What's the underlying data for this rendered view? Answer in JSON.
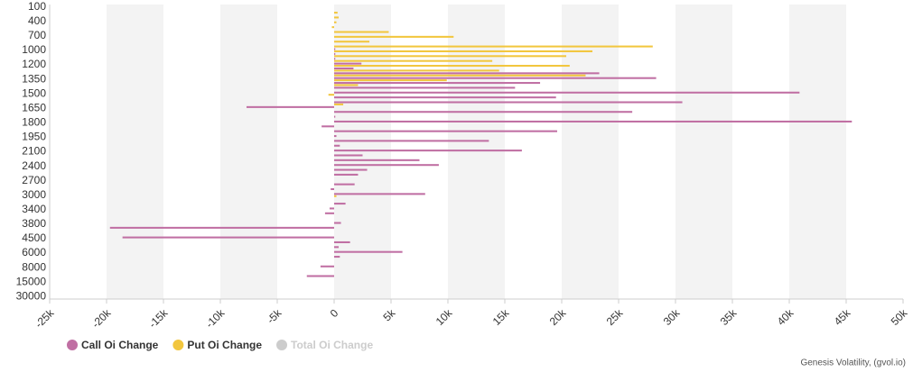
{
  "chart_data": {
    "type": "bar",
    "orientation": "horizontal",
    "categories": [
      "100",
      null,
      null,
      "400",
      null,
      null,
      "700",
      null,
      null,
      "1000",
      null,
      null,
      "1200",
      null,
      null,
      "1350",
      null,
      null,
      "1500",
      null,
      null,
      "1650",
      null,
      null,
      "1800",
      null,
      null,
      "1950",
      null,
      null,
      "2100",
      null,
      null,
      "2400",
      null,
      null,
      "2700",
      null,
      null,
      "3000",
      null,
      null,
      "3400",
      null,
      null,
      "3800",
      null,
      null,
      "4500",
      null,
      null,
      "6000",
      null,
      null,
      "8000",
      null,
      null,
      "15000",
      null,
      null,
      "30000"
    ],
    "series": [
      {
        "name": "Call Oi Change",
        "color": "#c06fa3",
        "values": [
          0,
          0,
          0,
          0,
          0,
          0,
          0,
          0,
          0,
          100,
          100,
          100,
          2400,
          1700,
          23300,
          28300,
          18100,
          15900,
          40900,
          19500,
          30600,
          -7700,
          26200,
          100,
          45500,
          -1100,
          19600,
          200,
          13600,
          500,
          16500,
          2500,
          7500,
          9200,
          2900,
          2100,
          0,
          1800,
          -300,
          8000,
          0,
          1000,
          -400,
          -800,
          0,
          600,
          -19700,
          0,
          -18600,
          1400,
          400,
          6000,
          500,
          0,
          -1200,
          0,
          -2400,
          0,
          0,
          0,
          0
        ]
      },
      {
        "name": "Put Oi Change",
        "color": "#f2c63e",
        "values": [
          0,
          300,
          400,
          200,
          -200,
          4800,
          10500,
          3100,
          28000,
          22700,
          20400,
          13900,
          20700,
          14500,
          22100,
          9900,
          2100,
          0,
          -500,
          0,
          800,
          0,
          0,
          0,
          0,
          0,
          0,
          0,
          0,
          0,
          0,
          0,
          0,
          0,
          0,
          0,
          0,
          0,
          0,
          200,
          0,
          0,
          0,
          0,
          0,
          0,
          0,
          0,
          0,
          0,
          0,
          0,
          0,
          0,
          0,
          0,
          0,
          0,
          0,
          0,
          0
        ]
      },
      {
        "name": "Total Oi Change",
        "color": "#cccccc",
        "visible": false
      }
    ],
    "xlim": [
      -25000,
      50000
    ],
    "xticks": [
      {
        "value": -25000,
        "label": "-25k"
      },
      {
        "value": -20000,
        "label": "-20k"
      },
      {
        "value": -15000,
        "label": "-15k"
      },
      {
        "value": -10000,
        "label": "-10k"
      },
      {
        "value": -5000,
        "label": "-5k"
      },
      0,
      {
        "value": 5000,
        "label": "5k"
      },
      {
        "value": 10000,
        "label": "10k"
      },
      {
        "value": 15000,
        "label": "15k"
      },
      {
        "value": 20000,
        "label": "20k"
      },
      {
        "value": 25000,
        "label": "25k"
      },
      {
        "value": 30000,
        "label": "30k"
      },
      {
        "value": 35000,
        "label": "35k"
      },
      {
        "value": 40000,
        "label": "40k"
      },
      {
        "value": 45000,
        "label": "45k"
      },
      {
        "value": 50000,
        "label": "50k"
      }
    ],
    "grid": true,
    "legend": "bottom-left",
    "credit": "Genesis Volatility, (gvol.io)"
  }
}
